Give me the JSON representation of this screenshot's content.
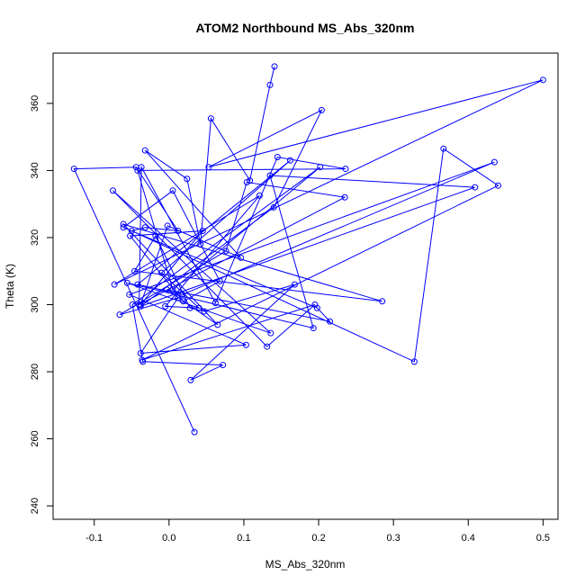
{
  "chart_data": {
    "type": "line",
    "title": "ATOM2 Northbound MS_Abs_320nm",
    "xlabel": "MS_Abs_320nm",
    "ylabel": "Theta (K)",
    "xlim": [
      -0.155,
      0.52
    ],
    "ylim": [
      236,
      375
    ],
    "xticks": [
      -0.1,
      0.0,
      0.1,
      0.2,
      0.3,
      0.4,
      0.5
    ],
    "xtick_labels": [
      "-0.1",
      "0.0",
      "0.1",
      "0.2",
      "0.3",
      "0.4",
      "0.5"
    ],
    "yticks": [
      240,
      260,
      280,
      300,
      320,
      340,
      360
    ],
    "ytick_labels": [
      "240",
      "260",
      "280",
      "300",
      "320",
      "340",
      "360"
    ],
    "grid": false,
    "markers": "open-circle",
    "series": [
      {
        "color": "#0000ff",
        "x": [
          0.141,
          0.135,
          0.108,
          0.056,
          0.042,
          0.024,
          -0.032,
          0.096,
          -0.002,
          -0.038,
          0.045,
          -0.052,
          0.019,
          0.068,
          0.005,
          -0.061,
          0.198,
          0.215,
          -0.003,
          0.065,
          -0.061,
          0.285,
          -0.046,
          -0.018,
          0.028,
          0.047,
          0.168,
          0.029,
          0.072,
          -0.035,
          -0.049,
          0.202,
          0.005,
          -0.042,
          0.236,
          0.145,
          0.062,
          -0.037,
          -0.04,
          0.235,
          0.104,
          0.076,
          -0.066,
          0.012,
          -0.038,
          0.103,
          -0.053,
          0.435,
          0.018,
          -0.042,
          0.162,
          -0.01,
          0.04,
          -0.005,
          0.121,
          -0.073,
          0.5,
          0.053,
          0.204,
          0.14,
          -0.038,
          0.409,
          0.135,
          0.193,
          -0.056,
          0.136,
          -0.075,
          0.131,
          0.195,
          -0.036,
          0.44,
          0.367,
          0.328,
          -0.05,
          -0.032,
          0.012,
          -0.044,
          -0.127,
          0.034
        ],
        "y": [
          371,
          365.5,
          337,
          355.5,
          318,
          337.5,
          346,
          314,
          323.5,
          300,
          322,
          320.5,
          301,
          307,
          334,
          323,
          299,
          295,
          304.5,
          294,
          324,
          301,
          310,
          320.5,
          299,
          298,
          306,
          277.5,
          282,
          283,
          300,
          341,
          304.5,
          340,
          340.5,
          344,
          300.5,
          341,
          300,
          332,
          336.5,
          316,
          297,
          302,
          285.5,
          288,
          303,
          342.5,
          303,
          306,
          343,
          309.5,
          299,
          299.5,
          332.5,
          306,
          367,
          341,
          358,
          329,
          299.5,
          335,
          338.5,
          293,
          306.5,
          291.5,
          334,
          287.5,
          300,
          283.5,
          335.5,
          346.5,
          283,
          322,
          323,
          322,
          341,
          340.5,
          262
        ]
      }
    ]
  }
}
